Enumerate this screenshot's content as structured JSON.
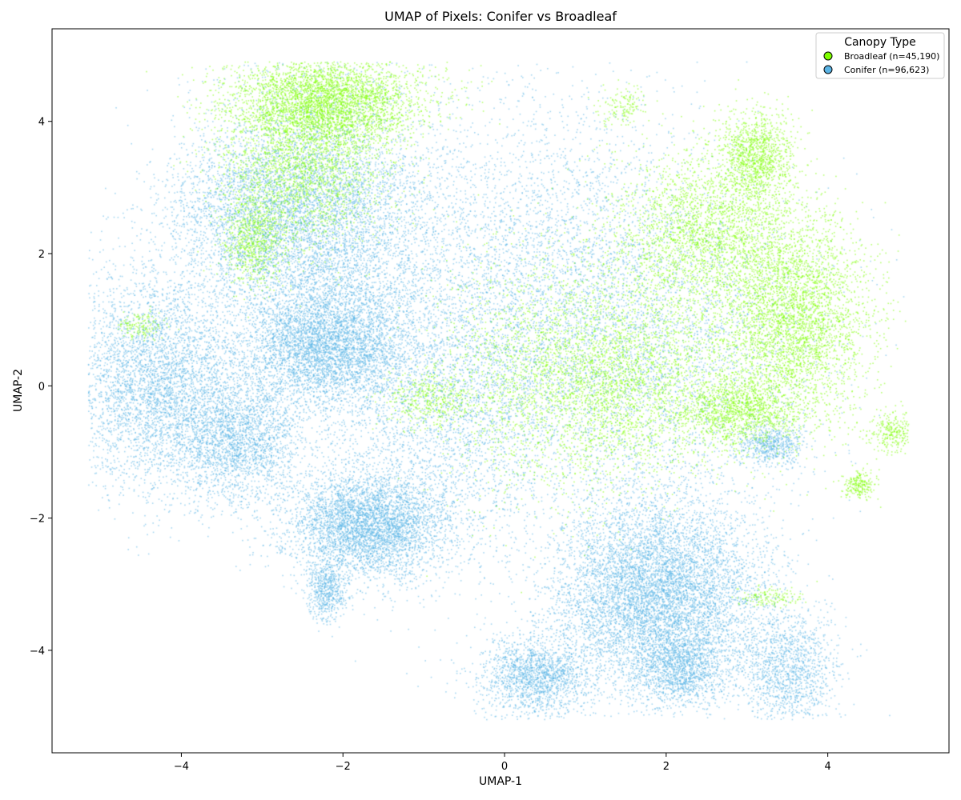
{
  "chart_data": {
    "type": "scatter",
    "title": "UMAP of Pixels: Conifer vs Broadleaf",
    "xlabel": "UMAP-1",
    "ylabel": "UMAP-2",
    "xlim": [
      -5.6,
      5.5
    ],
    "ylim": [
      -5.55,
      5.4
    ],
    "xticks": [
      -4,
      -2,
      0,
      2,
      4
    ],
    "yticks": [
      -4,
      -2,
      0,
      2,
      4
    ],
    "xtick_labels": [
      "−4",
      "−2",
      "0",
      "2",
      "4"
    ],
    "ytick_labels": [
      "−4",
      "−2",
      "0",
      "2",
      "4"
    ],
    "grid": false,
    "legend": {
      "title": "Canopy Type",
      "placement": "top-right"
    },
    "series": [
      {
        "name": "Conifer (n=96,623)",
        "color": "#5ab4e5",
        "count": 96623,
        "clusters": [
          {
            "x": -2.3,
            "y": 2.5,
            "sx": 0.75,
            "sy": 1.1,
            "w": 3
          },
          {
            "x": -2.2,
            "y": 0.6,
            "sx": 0.5,
            "sy": 0.45,
            "w": 2
          },
          {
            "x": -4.3,
            "y": 0.1,
            "sx": 0.55,
            "sy": 0.8,
            "w": 2.2
          },
          {
            "x": -3.3,
            "y": -0.8,
            "sx": 0.4,
            "sy": 0.5,
            "w": 1.2
          },
          {
            "x": -1.7,
            "y": -2.1,
            "sx": 0.5,
            "sy": 0.4,
            "w": 2.2
          },
          {
            "x": -2.2,
            "y": -3.1,
            "sx": 0.12,
            "sy": 0.22,
            "w": 0.3
          },
          {
            "x": 1.9,
            "y": -3.2,
            "sx": 0.65,
            "sy": 0.75,
            "w": 4
          },
          {
            "x": 0.4,
            "y": -4.4,
            "sx": 0.35,
            "sy": 0.3,
            "w": 0.9
          },
          {
            "x": 3.5,
            "y": -4.3,
            "sx": 0.3,
            "sy": 0.45,
            "w": 0.7
          },
          {
            "x": 2.2,
            "y": -4.3,
            "sx": 0.25,
            "sy": 0.25,
            "w": 0.5
          },
          {
            "x": 0.5,
            "y": 1.5,
            "sx": 1.1,
            "sy": 1.5,
            "w": 2.2
          },
          {
            "x": -0.8,
            "y": -0.3,
            "sx": 0.8,
            "sy": 1.2,
            "w": 1.5
          },
          {
            "x": 2.0,
            "y": 0.5,
            "sx": 1.0,
            "sy": 1.3,
            "w": 1.2
          },
          {
            "x": 3.3,
            "y": -0.9,
            "sx": 0.2,
            "sy": 0.15,
            "w": 0.3
          },
          {
            "x": -3.2,
            "y": 2.6,
            "sx": 0.6,
            "sy": 0.6,
            "w": 0.8
          }
        ]
      },
      {
        "name": "Broadleaf (n=45,190)",
        "color": "#7fff00",
        "count": 45190,
        "clusters": [
          {
            "x": -2.2,
            "y": 4.3,
            "sx": 0.6,
            "sy": 0.35,
            "w": 2.5
          },
          {
            "x": -2.5,
            "y": 3.3,
            "sx": 0.5,
            "sy": 0.6,
            "w": 1.5
          },
          {
            "x": -3.1,
            "y": 2.2,
            "sx": 0.2,
            "sy": 0.35,
            "w": 0.5
          },
          {
            "x": 3.1,
            "y": 3.5,
            "sx": 0.22,
            "sy": 0.35,
            "w": 0.8
          },
          {
            "x": 3.6,
            "y": 1.0,
            "sx": 0.45,
            "sy": 0.75,
            "w": 2.5
          },
          {
            "x": 2.5,
            "y": 2.3,
            "sx": 0.6,
            "sy": 0.6,
            "w": 1.8
          },
          {
            "x": 1.5,
            "y": 0.1,
            "sx": 0.75,
            "sy": 0.75,
            "w": 2.2
          },
          {
            "x": 2.9,
            "y": -0.4,
            "sx": 0.35,
            "sy": 0.25,
            "w": 0.8
          },
          {
            "x": 4.8,
            "y": -0.7,
            "sx": 0.15,
            "sy": 0.15,
            "w": 0.2
          },
          {
            "x": 4.4,
            "y": -1.5,
            "sx": 0.1,
            "sy": 0.1,
            "w": 0.15
          },
          {
            "x": 0.3,
            "y": 0.2,
            "sx": 0.6,
            "sy": 1.0,
            "w": 0.8
          },
          {
            "x": -0.9,
            "y": -0.2,
            "sx": 0.3,
            "sy": 0.2,
            "w": 0.3
          },
          {
            "x": 1.5,
            "y": 4.2,
            "sx": 0.15,
            "sy": 0.15,
            "w": 0.1
          },
          {
            "x": -4.5,
            "y": 0.9,
            "sx": 0.15,
            "sy": 0.1,
            "w": 0.1
          },
          {
            "x": 3.3,
            "y": -3.2,
            "sx": 0.2,
            "sy": 0.08,
            "w": 0.1
          }
        ]
      }
    ]
  }
}
